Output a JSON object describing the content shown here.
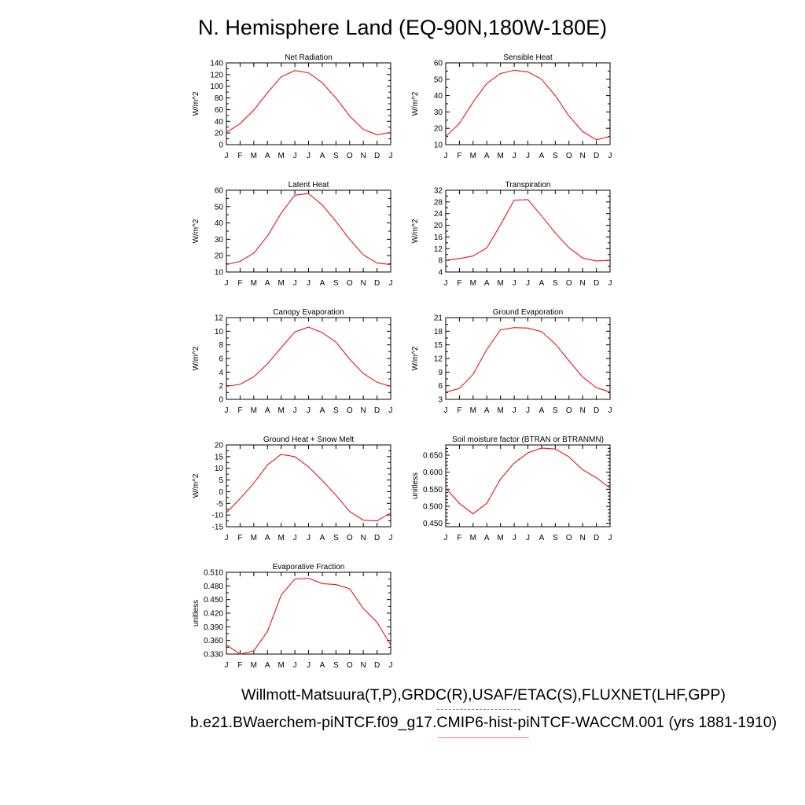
{
  "title": "N. Hemisphere Land (EQ-90N,180W-180E)",
  "footer": {
    "sources": "Willmott-Matsuura(T,P),GRDC(R),USAF/ETAC(S),FLUXNET(LHF,GPP)",
    "case": "b.e21.BWaerchem-piNTCF.f09_g17.CMIP6-hist-piNTCF-WACCM.001 (yrs 1881-1910)"
  },
  "colors": {
    "line": "#e8141c",
    "axis": "#000000",
    "underline_blue": "#7d7de6",
    "underline_red": "#f08080"
  },
  "chart_data": [
    {
      "type": "line",
      "title": "Net Radiation",
      "ylabel": "W/m^2",
      "categories": [
        "J",
        "F",
        "M",
        "A",
        "M",
        "J",
        "J",
        "A",
        "S",
        "O",
        "N",
        "D",
        "J"
      ],
      "values": [
        21,
        36,
        59,
        89,
        116,
        127,
        123,
        106,
        80,
        49,
        26,
        17,
        21
      ],
      "ylim": [
        0,
        140
      ],
      "yticks": [
        "0",
        "20",
        "40",
        "60",
        "80",
        "100",
        "120",
        "140"
      ],
      "yminor": 10
    },
    {
      "type": "line",
      "title": "Sensible Heat",
      "ylabel": "W/m^2",
      "categories": [
        "J",
        "F",
        "M",
        "A",
        "M",
        "J",
        "J",
        "A",
        "S",
        "O",
        "N",
        "D",
        "J"
      ],
      "values": [
        15,
        23,
        36,
        47.5,
        53.5,
        55.5,
        54.5,
        50,
        40,
        27.5,
        18,
        13,
        15
      ],
      "ylim": [
        10,
        60
      ],
      "yticks": [
        "10",
        "20",
        "30",
        "40",
        "50",
        "60"
      ],
      "yminor": 5
    },
    {
      "type": "line",
      "title": "Latent Heat",
      "ylabel": "W/m^2",
      "categories": [
        "J",
        "F",
        "M",
        "A",
        "M",
        "J",
        "J",
        "A",
        "S",
        "O",
        "N",
        "D",
        "J"
      ],
      "values": [
        14.5,
        16.5,
        21.5,
        32,
        46,
        57,
        58,
        51,
        41,
        30,
        20.5,
        15.5,
        14.5
      ],
      "ylim": [
        10,
        60
      ],
      "yticks": [
        "10",
        "20",
        "30",
        "40",
        "50",
        "60"
      ],
      "yminor": 5
    },
    {
      "type": "line",
      "title": "Transpiration",
      "ylabel": "W/m^2",
      "categories": [
        "J",
        "F",
        "M",
        "A",
        "M",
        "J",
        "J",
        "A",
        "S",
        "O",
        "N",
        "D",
        "J"
      ],
      "values": [
        8,
        8.6,
        9.5,
        12.3,
        20.2,
        28.6,
        28.8,
        23.2,
        17.4,
        12.3,
        8.8,
        7.8,
        8
      ],
      "ylim": [
        4,
        32
      ],
      "yticks": [
        "4",
        "8",
        "12",
        "16",
        "20",
        "24",
        "28",
        "32"
      ],
      "yminor": 2
    },
    {
      "type": "line",
      "title": "Canopy Evaporation",
      "ylabel": "W/m^2",
      "categories": [
        "J",
        "F",
        "M",
        "A",
        "M",
        "J",
        "J",
        "A",
        "S",
        "O",
        "N",
        "D",
        "J"
      ],
      "values": [
        1.9,
        2.2,
        3.3,
        5.2,
        7.6,
        9.9,
        10.6,
        9.8,
        8.4,
        5.9,
        3.8,
        2.5,
        1.9
      ],
      "ylim": [
        0,
        12
      ],
      "yticks": [
        "0",
        "2",
        "4",
        "6",
        "8",
        "10",
        "12"
      ],
      "yminor": 1
    },
    {
      "type": "line",
      "title": "Ground Evaporation",
      "ylabel": "W/m^2",
      "categories": [
        "J",
        "F",
        "M",
        "A",
        "M",
        "J",
        "J",
        "A",
        "S",
        "O",
        "N",
        "D",
        "J"
      ],
      "values": [
        4.6,
        5.4,
        8.5,
        14,
        18.3,
        18.8,
        18.7,
        17.9,
        15.2,
        11.5,
        7.9,
        5.6,
        4.6
      ],
      "ylim": [
        3,
        21
      ],
      "yticks": [
        "3",
        "6",
        "9",
        "12",
        "15",
        "18",
        "21"
      ],
      "yminor": 1.5
    },
    {
      "type": "line",
      "title": "Ground Heat + Snow Melt",
      "ylabel": "W/m^2",
      "categories": [
        "J",
        "F",
        "M",
        "A",
        "M",
        "J",
        "J",
        "A",
        "S",
        "O",
        "N",
        "D",
        "J"
      ],
      "values": [
        -9,
        -3,
        3.6,
        11.5,
        16,
        15,
        10.6,
        4.8,
        -1.5,
        -8.5,
        -12.2,
        -12.5,
        -9
      ],
      "ylim": [
        -15,
        20
      ],
      "yticks": [
        "-15",
        "-10",
        "-5",
        "0",
        "5",
        "10",
        "15",
        "20"
      ],
      "yminor": 2.5
    },
    {
      "type": "line",
      "title": "Soil moisture factor (BTRAN or BTRANMN)",
      "ylabel": "unitless",
      "categories": [
        "J",
        "F",
        "M",
        "A",
        "M",
        "J",
        "J",
        "A",
        "S",
        "O",
        "N",
        "D",
        "J"
      ],
      "values": [
        0.553,
        0.508,
        0.478,
        0.509,
        0.58,
        0.627,
        0.657,
        0.671,
        0.668,
        0.645,
        0.607,
        0.584,
        0.553
      ],
      "ylim": [
        0.44,
        0.68
      ],
      "yticks": [
        "0.450",
        "0.500",
        "0.550",
        "0.600",
        "0.650"
      ],
      "ytick_values": [
        0.45,
        0.5,
        0.55,
        0.6,
        0.65
      ],
      "yminor": 0.01
    },
    {
      "type": "line",
      "title": "Evaporative Fraction",
      "ylabel": "unitless",
      "categories": [
        "J",
        "F",
        "M",
        "A",
        "M",
        "J",
        "J",
        "A",
        "S",
        "O",
        "N",
        "D",
        "J"
      ],
      "values": [
        0.35,
        0.33,
        0.337,
        0.38,
        0.46,
        0.495,
        0.497,
        0.485,
        0.483,
        0.474,
        0.43,
        0.4,
        0.35
      ],
      "ylim": [
        0.33,
        0.51
      ],
      "yticks": [
        "0.330",
        "0.360",
        "0.390",
        "0.420",
        "0.450",
        "0.480",
        "0.510"
      ],
      "yminor": 0.015
    }
  ]
}
